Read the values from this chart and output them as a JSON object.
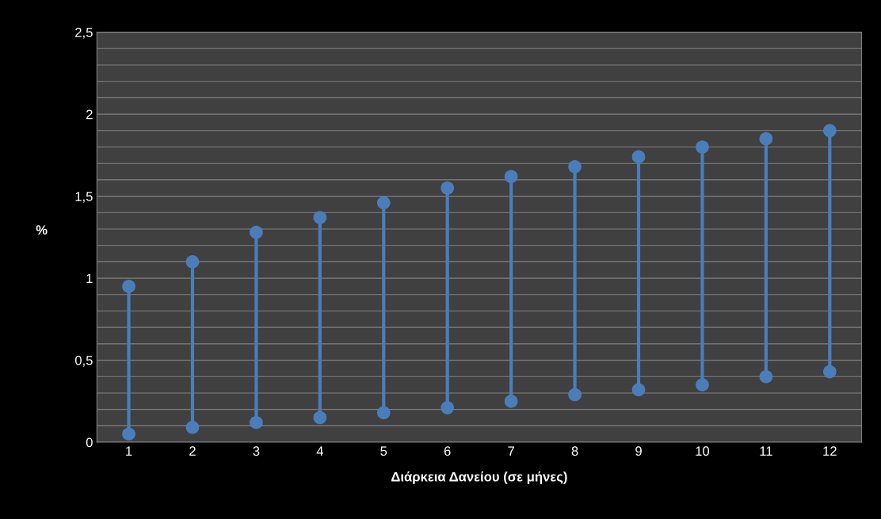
{
  "chart_data": {
    "type": "line",
    "xlabel": "Διάρκεια Δανείου (σε μήνες)",
    "ylabel": "%",
    "categories": [
      "1",
      "2",
      "3",
      "4",
      "5",
      "6",
      "7",
      "8",
      "9",
      "10",
      "11",
      "12"
    ],
    "marker": "circle",
    "grid": "y",
    "series": [
      {
        "color": "#4a7ebb",
        "x": [
          "1",
          "1"
        ],
        "values": [
          0.05,
          0.95
        ]
      },
      {
        "color": "#4a7ebb",
        "x": [
          "2",
          "2"
        ],
        "values": [
          0.09,
          1.1
        ]
      },
      {
        "color": "#4a7ebb",
        "x": [
          "3",
          "3"
        ],
        "values": [
          0.12,
          1.28
        ]
      },
      {
        "color": "#4a7ebb",
        "x": [
          "4",
          "4"
        ],
        "values": [
          0.15,
          1.37
        ]
      },
      {
        "color": "#4a7ebb",
        "x": [
          "5",
          "5"
        ],
        "values": [
          0.18,
          1.46
        ]
      },
      {
        "color": "#4a7ebb",
        "x": [
          "6",
          "6"
        ],
        "values": [
          0.21,
          1.55
        ]
      },
      {
        "color": "#4a7ebb",
        "x": [
          "7",
          "7"
        ],
        "values": [
          0.25,
          1.62
        ]
      },
      {
        "color": "#4a7ebb",
        "x": [
          "8",
          "8"
        ],
        "values": [
          0.29,
          1.68
        ]
      },
      {
        "color": "#4a7ebb",
        "x": [
          "9",
          "9"
        ],
        "values": [
          0.32,
          1.74
        ]
      },
      {
        "color": "#4a7ebb",
        "x": [
          "10",
          "10"
        ],
        "values": [
          0.35,
          1.8
        ]
      },
      {
        "color": "#4a7ebb",
        "x": [
          "11",
          "11"
        ],
        "values": [
          0.4,
          1.85
        ]
      },
      {
        "color": "#4a7ebb",
        "x": [
          "12",
          "12"
        ],
        "values": [
          0.43,
          1.9
        ]
      }
    ],
    "ylim": [
      0,
      2.5
    ],
    "yticks": [
      0,
      {
        "value": 0.1,
        "label": null
      },
      {
        "value": 0.2,
        "label": null
      },
      {
        "value": 0.3,
        "label": null
      },
      {
        "value": 0.4,
        "label": null
      },
      {
        "value": 0.5,
        "label": "0,5"
      },
      {
        "value": 0.6,
        "label": null
      },
      {
        "value": 0.7,
        "label": null
      },
      {
        "value": 0.8,
        "label": null
      },
      {
        "value": 0.9,
        "label": null
      },
      1,
      {
        "value": 1.1,
        "label": null
      },
      {
        "value": 1.2,
        "label": null
      },
      {
        "value": 1.3,
        "label": null
      },
      {
        "value": 1.4,
        "label": null
      },
      {
        "value": 1.5,
        "label": "1,5"
      },
      {
        "value": 1.6,
        "label": null
      },
      {
        "value": 1.7,
        "label": null
      },
      {
        "value": 1.8,
        "label": null
      },
      {
        "value": 1.9,
        "label": null
      },
      2,
      {
        "value": 2.1,
        "label": null
      },
      {
        "value": 2.2,
        "label": null
      },
      {
        "value": 2.3,
        "label": null
      },
      {
        "value": 2.4,
        "label": null
      },
      {
        "value": 2.5,
        "label": "2,5"
      }
    ]
  }
}
